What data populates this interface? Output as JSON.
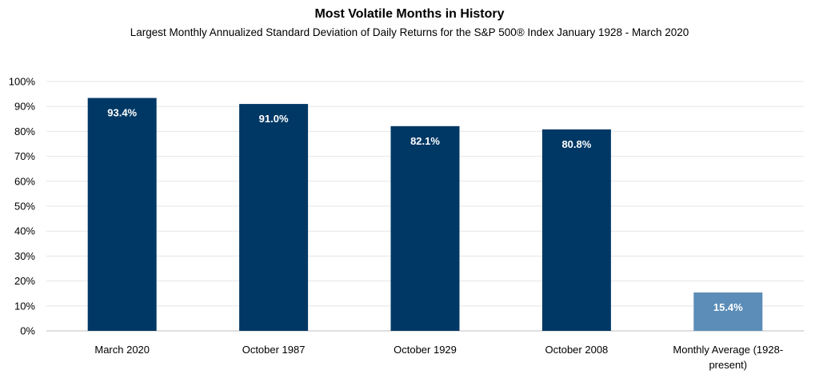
{
  "chart_data": {
    "type": "bar",
    "title": "Most Volatile Months in History",
    "subtitle": "Largest Monthly Annualized Standard Deviation of Daily Returns for the S&P 500® Index January 1928 - March 2020",
    "categories": [
      "March 2020",
      "October 1987",
      "October 1929",
      "October 2008",
      "Monthly Average (1928-present)"
    ],
    "category_lines": [
      [
        "March 2020"
      ],
      [
        "October 1987"
      ],
      [
        "October 1929"
      ],
      [
        "October 2008"
      ],
      [
        "Monthly Average (1928-",
        "present)"
      ]
    ],
    "values": [
      93.4,
      91.0,
      82.1,
      80.8,
      15.4
    ],
    "data_labels": [
      "93.4%",
      "91.0%",
      "82.1%",
      "80.8%",
      "15.4%"
    ],
    "colors": [
      "#003865",
      "#003865",
      "#003865",
      "#003865",
      "#5b8db8"
    ],
    "y_ticks": [
      "0%",
      "10%",
      "20%",
      "30%",
      "40%",
      "50%",
      "60%",
      "70%",
      "80%",
      "90%",
      "100%"
    ],
    "ylim": [
      0,
      100
    ],
    "xlabel": "",
    "ylabel": "",
    "grid": true,
    "legend": "none"
  }
}
